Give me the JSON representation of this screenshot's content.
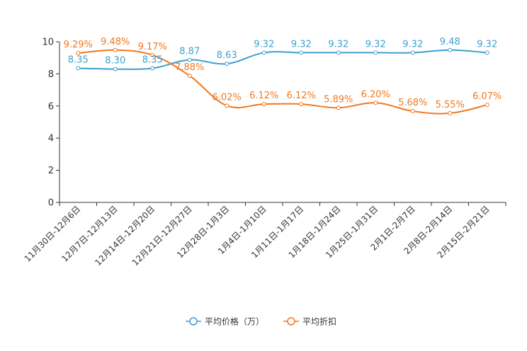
{
  "chart_data": {
    "type": "line",
    "categories": [
      "11月30日-12月6日",
      "12月7日-12月13日",
      "12月14日-12月20日",
      "12月21日-12月27日",
      "12月28日-1月3日",
      "1月4日-1月10日",
      "1月11日-1月17日",
      "1月18日-1月24日",
      "1月25日-1月31日",
      "2月1日-2月7日",
      "2月8日-2月14日",
      "2月15日-2月21日"
    ],
    "ylim": [
      0,
      10
    ],
    "yticks": [
      0,
      2,
      4,
      6,
      8,
      10
    ],
    "series": [
      {
        "name": "平均价格（万）",
        "color": "#3d9fcf",
        "values": [
          8.35,
          8.3,
          8.35,
          8.87,
          8.63,
          9.32,
          9.32,
          9.32,
          9.32,
          9.32,
          9.48,
          9.32
        ],
        "labels": [
          "8.35",
          "8.30",
          "8.35",
          "8.87",
          "8.63",
          "9.32",
          "9.32",
          "9.32",
          "9.32",
          "9.32",
          "9.48",
          "9.32"
        ]
      },
      {
        "name": "平均折扣",
        "color": "#f07820",
        "values": [
          9.29,
          9.48,
          9.17,
          7.88,
          6.02,
          6.12,
          6.12,
          5.89,
          6.2,
          5.68,
          5.55,
          6.07
        ],
        "labels": [
          "9.29%",
          "9.48%",
          "9.17%",
          "7.88%",
          "6.02%",
          "6.12%",
          "6.12%",
          "5.89%",
          "6.20%",
          "5.68%",
          "5.55%",
          "6.07%"
        ]
      }
    ],
    "legend_position": "bottom-center"
  }
}
